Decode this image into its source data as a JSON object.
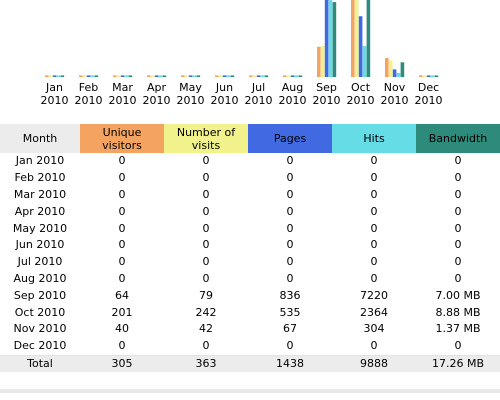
{
  "colors": {
    "unique": "#f4a460",
    "visits": "#f2f28c",
    "pages": "#4169e1",
    "hits": "#66dde6",
    "bandwidth": "#2e8b7b",
    "header_month_bg": "#ececec",
    "total_row_bg": "#ececec"
  },
  "chart_data": {
    "type": "bar",
    "categories": [
      "Jan 2010",
      "Feb 2010",
      "Mar 2010",
      "Apr 2010",
      "May 2010",
      "Jun 2010",
      "Jul 2010",
      "Aug 2010",
      "Sep 2010",
      "Oct 2010",
      "Nov 2010",
      "Dec 2010"
    ],
    "tick_labels": [
      [
        "Jan",
        "2010"
      ],
      [
        "Feb",
        "2010"
      ],
      [
        "Mar",
        "2010"
      ],
      [
        "Apr",
        "2010"
      ],
      [
        "May",
        "2010"
      ],
      [
        "Jun",
        "2010"
      ],
      [
        "Jul",
        "2010"
      ],
      [
        "Aug",
        "2010"
      ],
      [
        "Sep",
        "2010"
      ],
      [
        "Oct",
        "2010"
      ],
      [
        "Nov",
        "2010"
      ],
      [
        "Dec",
        "2010"
      ]
    ],
    "series": [
      {
        "name": "Unique visitors",
        "color": "#f4a460",
        "values": [
          0,
          0,
          0,
          0,
          0,
          0,
          0,
          0,
          64,
          201,
          40,
          0
        ]
      },
      {
        "name": "Number of visits",
        "color": "#f2f28c",
        "values": [
          0,
          0,
          0,
          0,
          0,
          0,
          0,
          0,
          79,
          242,
          42,
          0
        ]
      },
      {
        "name": "Pages",
        "color": "#4169e1",
        "values": [
          0,
          0,
          0,
          0,
          0,
          0,
          0,
          0,
          836,
          535,
          67,
          0
        ]
      },
      {
        "name": "Hits",
        "color": "#66dde6",
        "values": [
          0,
          0,
          0,
          0,
          0,
          0,
          0,
          0,
          7220,
          2364,
          304,
          0
        ]
      },
      {
        "name": "Bandwidth",
        "color": "#2e8b7b",
        "values": [
          0,
          0,
          0,
          0,
          0,
          0,
          0,
          0,
          7.0,
          8.88,
          1.37,
          0
        ]
      }
    ],
    "clipped_at_top": true
  },
  "table": {
    "headers": {
      "month": "Month",
      "unique": "Unique visitors",
      "visits": "Number of visits",
      "pages": "Pages",
      "hits": "Hits",
      "bandwidth": "Bandwidth"
    },
    "rows": [
      {
        "month": "Jan 2010",
        "unique": "0",
        "visits": "0",
        "pages": "0",
        "hits": "0",
        "bandwidth": "0"
      },
      {
        "month": "Feb 2010",
        "unique": "0",
        "visits": "0",
        "pages": "0",
        "hits": "0",
        "bandwidth": "0"
      },
      {
        "month": "Mar 2010",
        "unique": "0",
        "visits": "0",
        "pages": "0",
        "hits": "0",
        "bandwidth": "0"
      },
      {
        "month": "Apr 2010",
        "unique": "0",
        "visits": "0",
        "pages": "0",
        "hits": "0",
        "bandwidth": "0"
      },
      {
        "month": "May 2010",
        "unique": "0",
        "visits": "0",
        "pages": "0",
        "hits": "0",
        "bandwidth": "0"
      },
      {
        "month": "Jun 2010",
        "unique": "0",
        "visits": "0",
        "pages": "0",
        "hits": "0",
        "bandwidth": "0"
      },
      {
        "month": "Jul 2010",
        "unique": "0",
        "visits": "0",
        "pages": "0",
        "hits": "0",
        "bandwidth": "0"
      },
      {
        "month": "Aug 2010",
        "unique": "0",
        "visits": "0",
        "pages": "0",
        "hits": "0",
        "bandwidth": "0"
      },
      {
        "month": "Sep 2010",
        "unique": "64",
        "visits": "79",
        "pages": "836",
        "hits": "7220",
        "bandwidth": "7.00 MB"
      },
      {
        "month": "Oct 2010",
        "unique": "201",
        "visits": "242",
        "pages": "535",
        "hits": "2364",
        "bandwidth": "8.88 MB"
      },
      {
        "month": "Nov 2010",
        "unique": "40",
        "visits": "42",
        "pages": "67",
        "hits": "304",
        "bandwidth": "1.37 MB"
      },
      {
        "month": "Dec 2010",
        "unique": "0",
        "visits": "0",
        "pages": "0",
        "hits": "0",
        "bandwidth": "0"
      }
    ],
    "total": {
      "month": "Total",
      "unique": "305",
      "visits": "363",
      "pages": "1438",
      "hits": "9888",
      "bandwidth": "17.26 MB"
    }
  }
}
